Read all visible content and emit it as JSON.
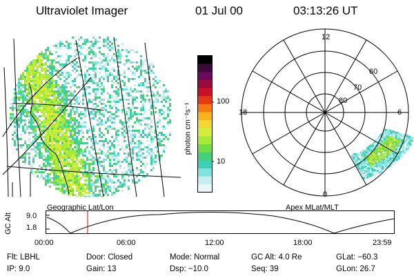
{
  "header": {
    "instrument": "Ultraviolet Imager",
    "date": "01 Jul 00",
    "time": "03:13:26 UT"
  },
  "left_panel": {
    "caption": "Geographic Lat/Lon"
  },
  "colorbar": {
    "unit_label": "photon cm⁻²s⁻¹",
    "tick_labels": [
      "100",
      "10"
    ],
    "colors": [
      "#000000",
      "#3b0a3a",
      "#6a0a5a",
      "#9a0a3a",
      "#c8102a",
      "#e63a12",
      "#f77a10",
      "#fbb21e",
      "#f1d836",
      "#d6ec3a",
      "#a8ea3a",
      "#72dc46",
      "#44cf7a",
      "#3acfb6",
      "#80e2e0",
      "#c6eef0",
      "#eaf6f8"
    ]
  },
  "right_panel": {
    "caption": "Apex MLat/MLT",
    "hour_labels": {
      "top": "12",
      "left": "18",
      "right": "6",
      "bottom": "0"
    },
    "lat_labels": [
      "80",
      "70",
      "60"
    ]
  },
  "altitude_plot": {
    "axis_label": "GC Alt",
    "y_ticks": [
      "9.0",
      "1.8"
    ],
    "x_ticks": [
      "00:00",
      "06:00",
      "12:00",
      "18:00",
      "23:59"
    ],
    "marker_time": "03:13"
  },
  "info": {
    "flt": "Flt: LBHL",
    "ip": "IP:  9.0",
    "door": "Door: Closed",
    "gain": "Gain: 13",
    "mode": "Mode: Normal",
    "dsp": "Dsp:   −10.0",
    "gc_alt": "GC Alt: 4.0 Re",
    "seq": "Seq: 39",
    "glat": "GLat:  −60.3",
    "glon": "GLon:   26.7"
  },
  "style_colors": {
    "marker": "#e00000",
    "aurora_core": "#b7e23a",
    "aurora_edge": "#4fd1b0"
  }
}
